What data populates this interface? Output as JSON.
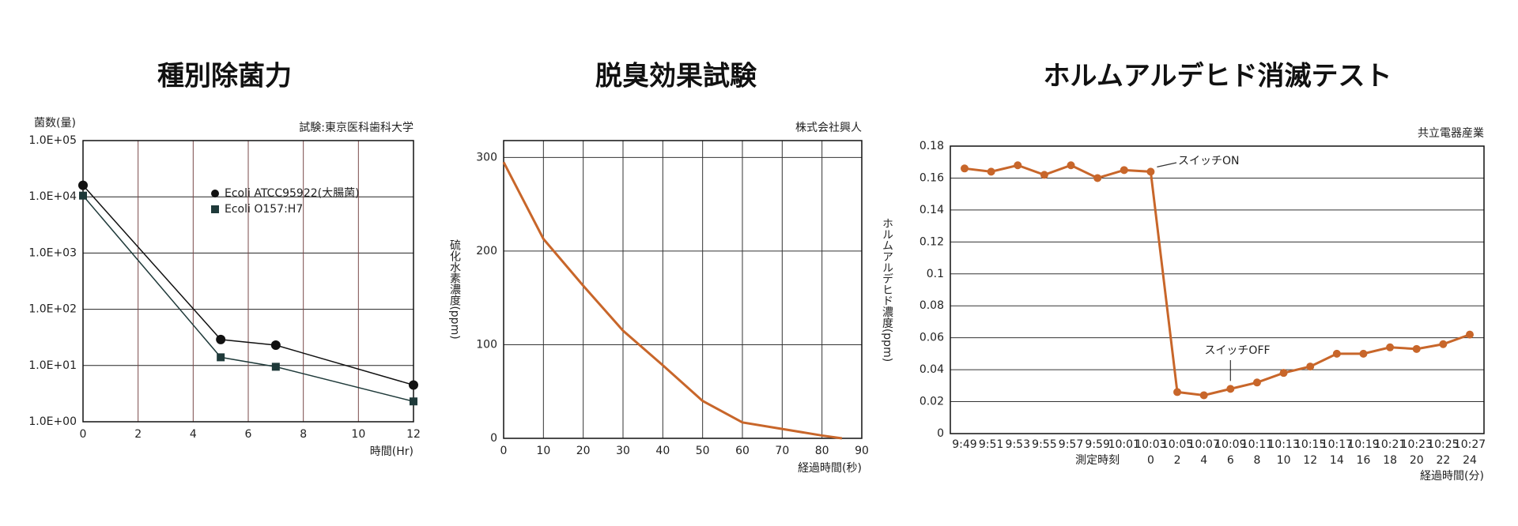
{
  "chart_data": [
    {
      "type": "line",
      "title": "種別除菌力",
      "annotation": "試験:東京医科歯科大学",
      "ylabel": "菌数(量)",
      "xlabel": "時間(Hr)",
      "xlim": [
        0,
        12
      ],
      "xticks": [
        0,
        2,
        4,
        6,
        8,
        10,
        12
      ],
      "ylim": [
        1,
        100000
      ],
      "ylog": true,
      "yticks": [
        {
          "value": 1,
          "label": "1.0E+00"
        },
        {
          "value": 10,
          "label": "1.0E+01"
        },
        {
          "value": 100,
          "label": "1.0E+02"
        },
        {
          "value": 1000,
          "label": "1.0E+03"
        },
        {
          "value": 10000,
          "label": "1.0E+04"
        },
        {
          "value": 100000,
          "label": "1.0E+05"
        }
      ],
      "grid": true,
      "grid_color": "#7a4a4a",
      "legend": "upper right",
      "series": [
        {
          "name": "Ecoli  ATCC95922(大腸菌)",
          "color": "#111111",
          "marker": "circle",
          "x": [
            0,
            5,
            7,
            12
          ],
          "values": [
            16000,
            29,
            23,
            4.5
          ]
        },
        {
          "name": "Ecoli  O157:H7",
          "color": "#1f3a3a",
          "marker": "square",
          "x": [
            0,
            5,
            7,
            12
          ],
          "values": [
            10500,
            14,
            9.5,
            2.3
          ]
        }
      ]
    },
    {
      "type": "line",
      "title": "脱臭効果試験",
      "annotation": "株式会社興人",
      "ylabel": "硫化水素濃度(ppm)",
      "xlabel": "経過時間(秒)",
      "xlim": [
        0,
        90
      ],
      "xticks": [
        0,
        10,
        20,
        30,
        40,
        50,
        60,
        70,
        80,
        90
      ],
      "ylim": [
        0,
        318
      ],
      "yticks": [
        0,
        100,
        200,
        300
      ],
      "grid": true,
      "grid_color": "#333333",
      "series": [
        {
          "name": null,
          "color": "#c8662a",
          "marker": "none",
          "x": [
            0,
            10,
            20,
            30,
            40,
            50,
            60,
            70,
            80,
            85
          ],
          "values": [
            295,
            213,
            163,
            115,
            78,
            40,
            17,
            10,
            3,
            0
          ]
        }
      ]
    },
    {
      "type": "line",
      "title": "ホルムアルデヒド消滅テスト",
      "annotation": "共立電器産業",
      "ylabel": "ホルムアルデヒド濃度(ppm)",
      "xlabel_time": "測定時刻",
      "xlabel": "経過時間(分)",
      "categories": [
        "9:49",
        "9:51",
        "9:53",
        "9:55",
        "9:57",
        "9:59",
        "10:01",
        "10:03",
        "10:05",
        "10:07",
        "10:09",
        "10:11",
        "10:13",
        "10:15",
        "10:17",
        "10:19",
        "10:21",
        "10:23",
        "10:25",
        "10:27"
      ],
      "elapsed": [
        null,
        null,
        null,
        null,
        null,
        null,
        null,
        0,
        2,
        4,
        6,
        8,
        10,
        12,
        14,
        16,
        18,
        20,
        22,
        24
      ],
      "ylim": [
        0,
        0.18
      ],
      "yticks": [
        0,
        0.02,
        0.04,
        0.06,
        0.08,
        0.1,
        0.12,
        0.14,
        0.16,
        0.18
      ],
      "grid": true,
      "grid_color": "#333333",
      "notes": [
        "スイッチON",
        "スイッチOFF"
      ],
      "series": [
        {
          "name": null,
          "color": "#c8662a",
          "marker": "circle",
          "values": [
            0.166,
            0.164,
            0.168,
            0.162,
            0.168,
            0.16,
            0.165,
            0.164,
            0.026,
            0.024,
            0.028,
            0.032,
            0.038,
            0.042,
            0.05,
            0.05,
            0.054,
            0.053,
            0.056,
            0.062
          ]
        }
      ]
    }
  ]
}
